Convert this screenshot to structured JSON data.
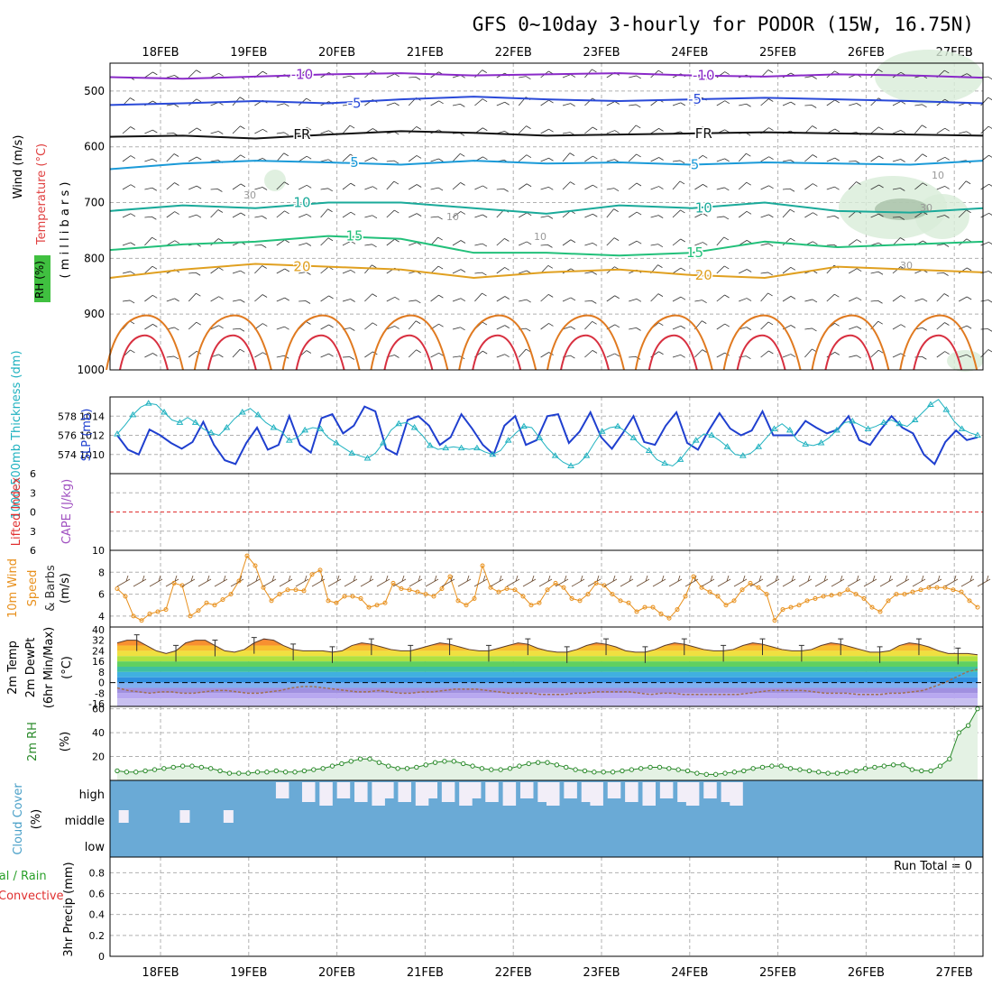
{
  "title": "GFS 0~10day 3-hourly for PODOR (15W, 16.75N)",
  "dates": [
    "18FEB",
    "19FEB",
    "20FEB",
    "21FEB",
    "22FEB",
    "23FEB",
    "24FEB",
    "25FEB",
    "26FEB",
    "27FEB"
  ],
  "colors": {
    "grid": "#b0b0b0",
    "slp": "#1f3fcf",
    "thick": "#20b2c0",
    "wind": "#e8901c",
    "temp": "#7a4a2a",
    "rh2m": "#2a8a2a",
    "cloud": "#6aaad6",
    "cape": "#a050c0",
    "li": "#e03030"
  },
  "chart_data": [
    {
      "type": "contour",
      "name": "upper-air",
      "ylabel_parts": [
        "RH (%)",
        "Temperature (°C)",
        "Wind (m/s)"
      ],
      "ylabel_units": "( m i l l i b a r s )",
      "pressure_ticks": [
        500,
        600,
        700,
        800,
        900,
        1000
      ],
      "pressure_range": [
        450,
        1000
      ],
      "temperature_contours": [
        {
          "label": "-10",
          "p": [
            475,
            478,
            474,
            470,
            468,
            472,
            470,
            468,
            472,
            474,
            470,
            472,
            476
          ],
          "color": "#8a2ac8"
        },
        {
          "label": "-5",
          "p": [
            525,
            522,
            518,
            522,
            515,
            510,
            515,
            518,
            515,
            512,
            515,
            518,
            522
          ],
          "color": "#2a4ad8"
        },
        {
          "label": "FR",
          "p": [
            582,
            580,
            585,
            578,
            572,
            575,
            580,
            578,
            576,
            574,
            576,
            578,
            580
          ],
          "color": "#111111"
        },
        {
          "label": "5",
          "p": [
            640,
            630,
            625,
            628,
            632,
            625,
            630,
            628,
            632,
            628,
            630,
            632,
            625
          ],
          "color": "#1a9ad8"
        },
        {
          "label": "10",
          "p": [
            715,
            705,
            710,
            700,
            700,
            710,
            720,
            705,
            710,
            700,
            715,
            718,
            710
          ],
          "color": "#1aaa9a"
        },
        {
          "label": "15",
          "p": [
            785,
            775,
            770,
            760,
            765,
            790,
            790,
            795,
            790,
            770,
            780,
            775,
            770
          ],
          "color": "#22c07a"
        },
        {
          "label": "20",
          "p": [
            835,
            820,
            810,
            815,
            820,
            835,
            825,
            820,
            830,
            835,
            815,
            820,
            825
          ],
          "color": "#e0a020"
        }
      ],
      "rh_labels": [
        "10",
        "10",
        "10",
        "30",
        "30",
        "30"
      ]
    },
    {
      "type": "line",
      "name": "slp-thickness",
      "ylabel_left": "1000-500mb Thickness (dm)",
      "ylabel_right": "SLP (mb)",
      "thickness_ticks": [
        574,
        576,
        578
      ],
      "slp_ticks": [
        1010,
        1012,
        1014
      ],
      "slp_range": [
        1008,
        1016
      ],
      "series": [
        {
          "name": "SLP (mb)",
          "values": [
            1012.0,
            1010.5,
            1010.0,
            1012.6,
            1012.0,
            1011.2,
            1010.6,
            1011.3,
            1013.4,
            1011.0,
            1009.4,
            1009.0,
            1011.2,
            1012.8,
            1010.5,
            1011.0,
            1014.0,
            1011.0,
            1010.2,
            1013.8,
            1014.2,
            1012.2,
            1013.0,
            1015.0,
            1014.5,
            1010.6,
            1010.0,
            1013.6,
            1014.0,
            1013.0,
            1011.0,
            1011.8,
            1014.2,
            1012.7,
            1011.0,
            1010.0,
            1013.0,
            1014.0,
            1011.0,
            1011.5,
            1014.0,
            1014.2,
            1011.2,
            1012.4,
            1014.4,
            1011.8,
            1010.6,
            1012.2,
            1014.0,
            1011.3,
            1011.0,
            1013.0,
            1014.4,
            1011.2,
            1010.5,
            1012.5,
            1014.3,
            1012.7,
            1012.0,
            1012.5,
            1014.5,
            1012.0,
            1012.0,
            1012.0,
            1013.5,
            1012.8,
            1012.2,
            1012.6,
            1014.0,
            1011.5,
            1011.0,
            1012.6,
            1014.0,
            1012.8,
            1012.2,
            1010.0,
            1009.0,
            1011.3,
            1012.5,
            1011.5,
            1011.8
          ]
        },
        {
          "name": "1000-500mb Thickness (dm)",
          "values": [
            576.1,
            576.8,
            577.6,
            578.2,
            578.5,
            578.4,
            577.8,
            577.2,
            577.0,
            577.4,
            577.0,
            576.5,
            576.2,
            576.0,
            576.6,
            577.3,
            577.8,
            578.1,
            577.6,
            577.0,
            576.6,
            576.3,
            575.6,
            575.8,
            576.4,
            576.6,
            576.5,
            575.8,
            575.4,
            575.0,
            574.6,
            574.4,
            574.2,
            574.6,
            575.4,
            576.4,
            576.9,
            577.0,
            576.6,
            576.0,
            575.2,
            574.9,
            575.0,
            575.1,
            575.0,
            574.9,
            575.0,
            574.7,
            574.5,
            574.8,
            575.6,
            576.2,
            576.7,
            576.6,
            575.8,
            575.0,
            574.4,
            573.9,
            573.6,
            573.8,
            574.4,
            575.4,
            576.3,
            576.6,
            576.7,
            576.3,
            575.8,
            575.2,
            574.8,
            574.1,
            573.8,
            573.6,
            574.1,
            574.9,
            575.6,
            576.1,
            576.0,
            575.6,
            575.1,
            574.5,
            574.4,
            574.6,
            575.1,
            575.8,
            576.5,
            576.9,
            576.4,
            575.6,
            575.3,
            575.2,
            575.4,
            575.8,
            576.4,
            577.0,
            577.1,
            576.8,
            576.5,
            576.7,
            577.0,
            577.2,
            576.9,
            576.7,
            577.2,
            577.8,
            578.4,
            578.8,
            578.0,
            577.1,
            576.5,
            576.2,
            576.0
          ]
        }
      ]
    },
    {
      "type": "line",
      "name": "li-cape",
      "ylabel_left": "Lifted Index",
      "ylabel_right": "CAPE (J/kg)",
      "li_ticks": [
        6,
        3,
        0,
        -3,
        -6
      ],
      "li_range": [
        -6,
        6
      ]
    },
    {
      "type": "line",
      "name": "wind10m",
      "ylabel": "10m Wind Speed (m/s) & Barbs",
      "y_ticks": [
        4,
        6,
        8,
        10
      ],
      "y_range": [
        3,
        10
      ],
      "series": [
        {
          "name": "10m Wind Speed (m/s)",
          "values": [
            6.5,
            5.8,
            4.0,
            3.6,
            4.2,
            4.4,
            4.6,
            7.0,
            6.8,
            4.0,
            4.5,
            5.2,
            5.0,
            5.5,
            6.0,
            7.2,
            9.5,
            8.6,
            6.6,
            5.4,
            6.0,
            6.4,
            6.4,
            6.3,
            7.8,
            8.2,
            5.4,
            5.2,
            5.8,
            5.8,
            5.6,
            4.8,
            5.0,
            5.2,
            7.0,
            6.5,
            6.4,
            6.2,
            6.0,
            5.8,
            6.5,
            7.6,
            5.4,
            5.0,
            5.6,
            8.6,
            6.6,
            6.2,
            6.5,
            6.4,
            5.8,
            5.0,
            5.2,
            6.4,
            7.0,
            6.6,
            5.6,
            5.4,
            6.0,
            7.0,
            6.8,
            6.0,
            5.4,
            5.2,
            4.4,
            4.8,
            4.8,
            4.2,
            3.8,
            4.6,
            5.8,
            7.6,
            6.6,
            6.2,
            5.8,
            5.0,
            5.4,
            6.4,
            7.0,
            6.6,
            6.0,
            3.6,
            4.6,
            4.8,
            5.0,
            5.4,
            5.6,
            5.8,
            5.9,
            6.0,
            6.4,
            6.0,
            5.6,
            4.8,
            4.4,
            5.4,
            6.0,
            6.0,
            6.2,
            6.4,
            6.6,
            6.6,
            6.6,
            6.4,
            6.2,
            5.4,
            4.8
          ]
        }
      ]
    },
    {
      "type": "area",
      "name": "temp2m",
      "ylabel": "2m Temp 2m DewPt (6hr Min/Max) (°C)",
      "y_ticks": [
        40,
        32,
        24,
        16,
        8,
        0,
        -8,
        -16
      ],
      "y_range": [
        -18,
        42
      ],
      "series": [
        {
          "name": "2m Temp",
          "values": [
            30,
            32,
            32,
            28,
            24,
            22,
            24,
            30,
            32,
            32,
            28,
            24,
            23,
            25,
            30,
            33,
            32,
            28,
            25,
            24,
            24,
            24,
            23,
            24,
            28,
            30,
            29,
            27,
            25,
            24,
            24,
            26,
            28,
            30,
            29,
            27,
            25,
            24,
            24,
            26,
            28,
            30,
            29,
            26,
            24,
            23,
            23,
            25,
            28,
            30,
            29,
            27,
            24,
            23,
            23,
            25,
            28,
            30,
            29,
            27,
            25,
            24,
            24,
            25,
            28,
            30,
            29,
            27,
            25,
            24,
            24,
            25,
            28,
            30,
            29,
            27,
            25,
            23,
            23,
            24,
            28,
            30,
            29,
            27,
            24,
            22,
            22,
            22,
            21
          ]
        },
        {
          "name": "2m DewPt",
          "values": [
            -4,
            -6,
            -7,
            -8,
            -7,
            -7,
            -8,
            -8,
            -7,
            -6,
            -6,
            -7,
            -8,
            -8,
            -7,
            -6,
            -4,
            -3,
            -3,
            -4,
            -5,
            -6,
            -7,
            -7,
            -6,
            -7,
            -8,
            -8,
            -7,
            -7,
            -6,
            -5,
            -5,
            -5,
            -6,
            -7,
            -8,
            -8,
            -8,
            -9,
            -9,
            -9,
            -8,
            -8,
            -7,
            -7,
            -7,
            -7,
            -8,
            -9,
            -8,
            -8,
            -9,
            -9,
            -9,
            -9,
            -9,
            -9,
            -8,
            -7,
            -6,
            -6,
            -6,
            -6,
            -7,
            -8,
            -8,
            -8,
            -9,
            -9,
            -9,
            -8,
            -8,
            -7,
            -6,
            -3,
            0,
            4,
            8,
            10
          ]
        }
      ]
    },
    {
      "type": "line",
      "name": "rh2m",
      "ylabel": "2m RH (%)",
      "y_ticks": [
        20,
        40,
        60
      ],
      "y_range": [
        0,
        62
      ],
      "series": [
        {
          "name": "2m RH",
          "values": [
            8,
            7,
            7,
            8,
            9,
            10,
            11,
            12,
            12,
            11,
            10,
            8,
            6,
            6,
            6,
            7,
            7,
            8,
            7,
            7,
            8,
            9,
            10,
            12,
            14,
            16,
            18,
            18,
            15,
            12,
            10,
            10,
            11,
            13,
            15,
            16,
            16,
            14,
            12,
            10,
            9,
            9,
            10,
            12,
            14,
            15,
            15,
            13,
            11,
            9,
            8,
            7,
            7,
            7,
            8,
            9,
            10,
            11,
            11,
            10,
            9,
            8,
            6,
            5,
            5,
            6,
            7,
            8,
            10,
            11,
            12,
            12,
            10,
            9,
            8,
            7,
            6,
            6,
            7,
            8,
            10,
            11,
            12,
            13,
            13,
            9,
            8,
            8,
            12,
            18,
            40,
            46,
            60
          ]
        }
      ]
    },
    {
      "type": "bar",
      "name": "cloud-cover",
      "ylabel": "Cloud Cover (%)",
      "levels": [
        "high",
        "middle",
        "low"
      ],
      "high_clear_x": [
        0.19,
        0.22,
        0.24,
        0.26,
        0.28,
        0.3,
        0.31,
        0.33,
        0.35,
        0.36,
        0.38,
        0.4,
        0.41,
        0.43,
        0.45,
        0.47,
        0.49,
        0.5,
        0.52,
        0.54,
        0.55,
        0.57,
        0.59,
        0.61,
        0.63,
        0.65,
        0.66,
        0.68,
        0.7,
        0.71
      ],
      "middle_clear_x": [
        0.01,
        0.08,
        0.13
      ]
    },
    {
      "type": "bar",
      "name": "precip",
      "ylabel": "3hr Precip (mm)",
      "ylabel_parts": [
        "Total / Rain",
        "Convective"
      ],
      "y_ticks": [
        0,
        0.2,
        0.4,
        0.6,
        0.8
      ],
      "y_range": [
        0,
        0.95
      ],
      "run_total": "Run Total = 0"
    }
  ]
}
